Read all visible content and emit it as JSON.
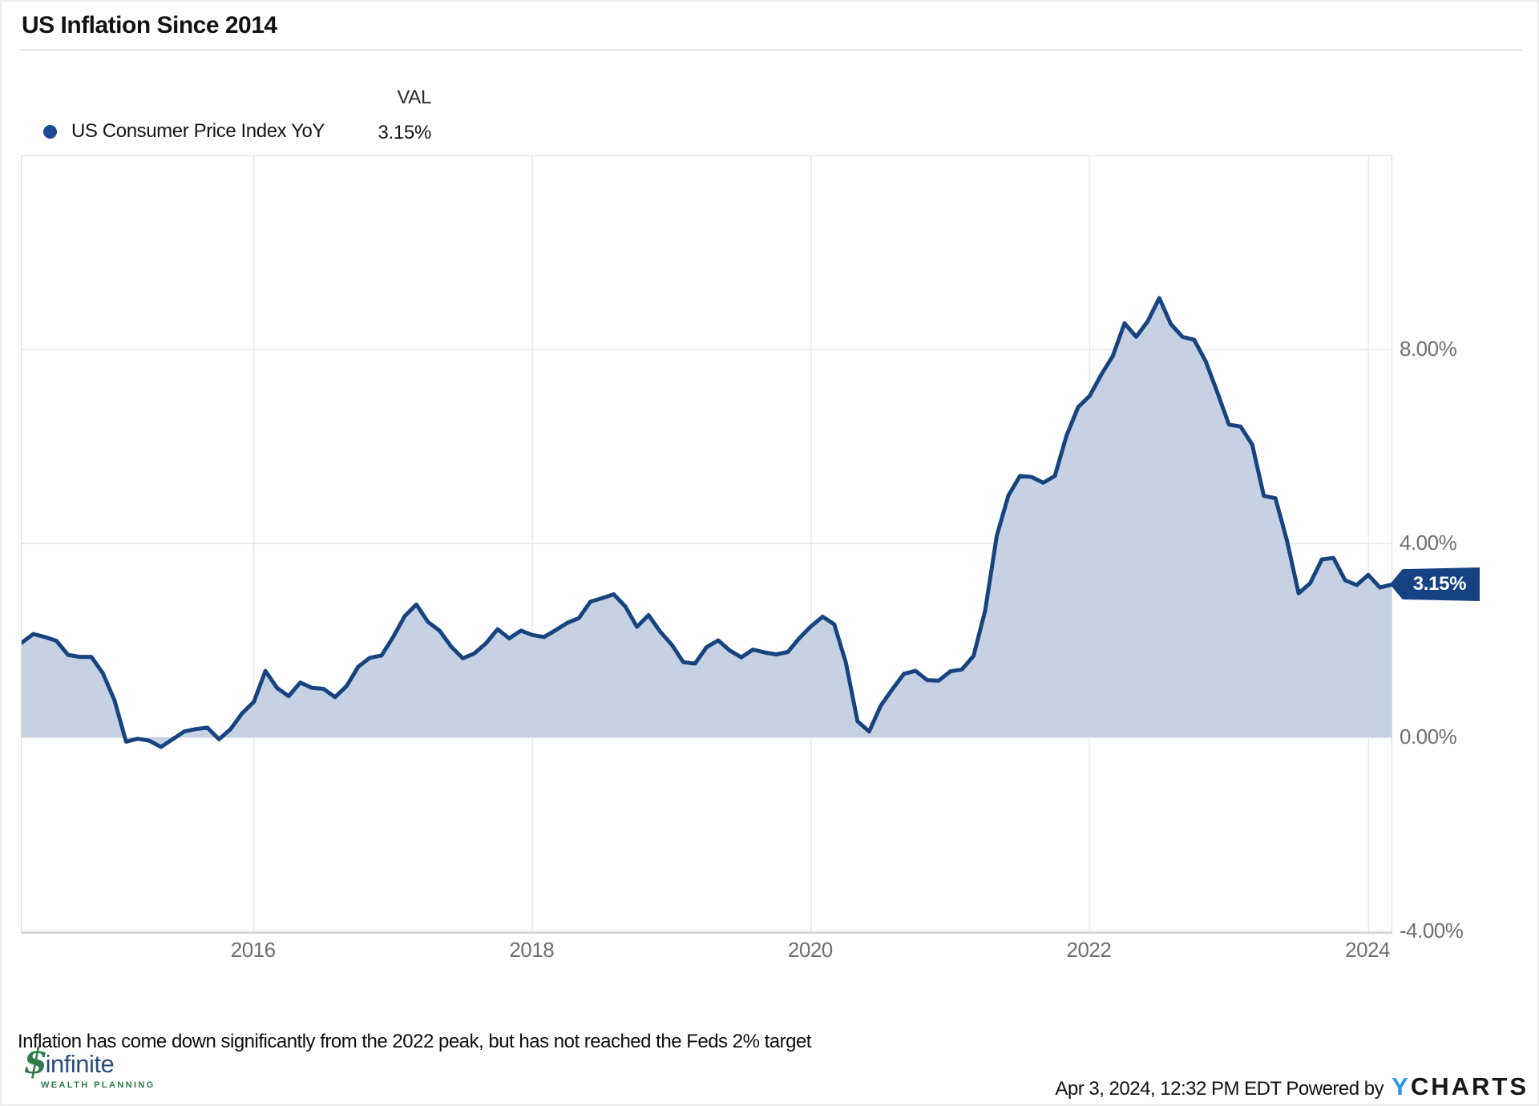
{
  "header": {
    "title": "US Inflation Since 2014"
  },
  "legend": {
    "val_header": "VAL",
    "series_label": "US Consumer Price Index YoY",
    "series_value": "3.15%",
    "dot_color": "#1b4b94"
  },
  "chart_data": {
    "type": "area",
    "title": "US Inflation Since 2014",
    "series_name": "US Consumer Price Index YoY",
    "unit": "percent YoY",
    "line_color": "#17447f",
    "fill_color": "#c7d1e4",
    "grid_color": "#e8e8e8",
    "ylim": [
      -4,
      12
    ],
    "y_ticks": [
      "8.00%",
      "4.00%",
      "0.00%",
      "-4.00%"
    ],
    "y_tick_values": [
      8,
      4,
      0,
      -4
    ],
    "x_ticks": [
      "2016",
      "2018",
      "2020",
      "2022",
      "2024"
    ],
    "x_tick_indices": [
      20,
      44,
      68,
      92,
      116
    ],
    "last_value_label": "3.15%",
    "months": [
      "2014-04",
      "2014-05",
      "2014-06",
      "2014-07",
      "2014-08",
      "2014-09",
      "2014-10",
      "2014-11",
      "2014-12",
      "2015-01",
      "2015-02",
      "2015-03",
      "2015-04",
      "2015-05",
      "2015-06",
      "2015-07",
      "2015-08",
      "2015-09",
      "2015-10",
      "2015-11",
      "2015-12",
      "2016-01",
      "2016-02",
      "2016-03",
      "2016-04",
      "2016-05",
      "2016-06",
      "2016-07",
      "2016-08",
      "2016-09",
      "2016-10",
      "2016-11",
      "2016-12",
      "2017-01",
      "2017-02",
      "2017-03",
      "2017-04",
      "2017-05",
      "2017-06",
      "2017-07",
      "2017-08",
      "2017-09",
      "2017-10",
      "2017-11",
      "2017-12",
      "2018-01",
      "2018-02",
      "2018-03",
      "2018-04",
      "2018-05",
      "2018-06",
      "2018-07",
      "2018-08",
      "2018-09",
      "2018-10",
      "2018-11",
      "2018-12",
      "2019-01",
      "2019-02",
      "2019-03",
      "2019-04",
      "2019-05",
      "2019-06",
      "2019-07",
      "2019-08",
      "2019-09",
      "2019-10",
      "2019-11",
      "2019-12",
      "2020-01",
      "2020-02",
      "2020-03",
      "2020-04",
      "2020-05",
      "2020-06",
      "2020-07",
      "2020-08",
      "2020-09",
      "2020-10",
      "2020-11",
      "2020-12",
      "2021-01",
      "2021-02",
      "2021-03",
      "2021-04",
      "2021-05",
      "2021-06",
      "2021-07",
      "2021-08",
      "2021-09",
      "2021-10",
      "2021-11",
      "2021-12",
      "2022-01",
      "2022-02",
      "2022-03",
      "2022-04",
      "2022-05",
      "2022-06",
      "2022-07",
      "2022-08",
      "2022-09",
      "2022-10",
      "2022-11",
      "2022-12",
      "2023-01",
      "2023-02",
      "2023-03",
      "2023-04",
      "2023-05",
      "2023-06",
      "2023-07",
      "2023-08",
      "2023-09",
      "2023-10",
      "2023-11",
      "2023-12",
      "2024-01",
      "2024-02"
    ],
    "values": [
      1.95,
      2.13,
      2.07,
      1.99,
      1.7,
      1.66,
      1.66,
      1.32,
      0.76,
      -0.09,
      -0.03,
      -0.07,
      -0.2,
      -0.04,
      0.12,
      0.17,
      0.2,
      -0.04,
      0.17,
      0.5,
      0.73,
      1.37,
      1.02,
      0.85,
      1.13,
      1.02,
      1.0,
      0.83,
      1.06,
      1.46,
      1.64,
      1.69,
      2.07,
      2.5,
      2.74,
      2.38,
      2.2,
      1.87,
      1.63,
      1.73,
      1.94,
      2.23,
      2.04,
      2.2,
      2.11,
      2.07,
      2.21,
      2.36,
      2.46,
      2.8,
      2.87,
      2.95,
      2.7,
      2.28,
      2.52,
      2.18,
      1.91,
      1.55,
      1.52,
      1.86,
      2.0,
      1.79,
      1.65,
      1.81,
      1.75,
      1.71,
      1.76,
      2.05,
      2.29,
      2.49,
      2.33,
      1.54,
      0.33,
      0.12,
      0.65,
      0.99,
      1.31,
      1.37,
      1.18,
      1.17,
      1.36,
      1.4,
      1.68,
      2.62,
      4.16,
      4.99,
      5.39,
      5.37,
      5.25,
      5.39,
      6.22,
      6.81,
      7.04,
      7.48,
      7.87,
      8.54,
      8.26,
      8.58,
      9.06,
      8.52,
      8.26,
      8.2,
      7.75,
      7.11,
      6.45,
      6.41,
      6.04,
      4.98,
      4.93,
      4.05,
      2.97,
      3.18,
      3.67,
      3.7,
      3.24,
      3.14,
      3.35,
      3.09,
      3.15
    ]
  },
  "footer": {
    "annotation": "Inflation has come down significantly from the 2022 peak, but has not reached the Feds 2% target",
    "logo": {
      "glyph": "$",
      "name": "infinite",
      "subtitle": "WEALTH PLANNING"
    },
    "timestamp_powered": "Apr 3, 2024, 12:32 PM EDT Powered by",
    "brand_y": "Y",
    "brand_rest": "CHARTS"
  }
}
